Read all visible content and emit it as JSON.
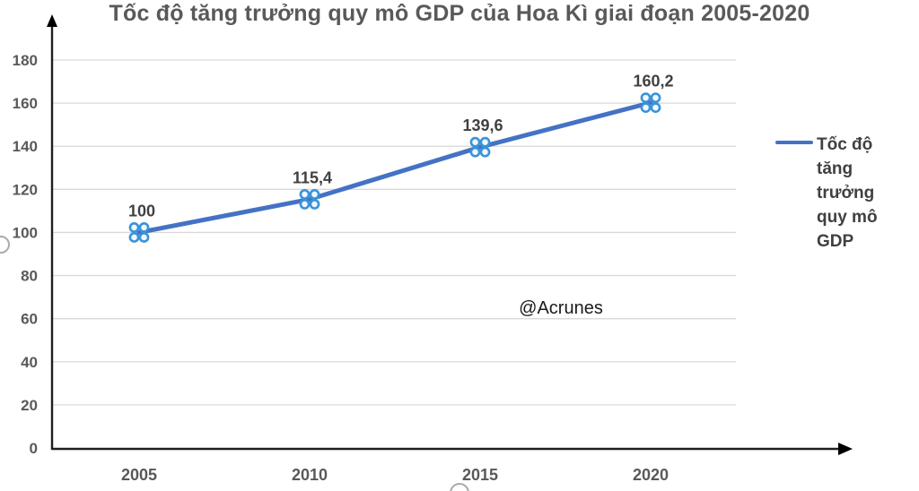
{
  "chart_data": {
    "type": "line",
    "title": "Tốc độ tăng trưởng quy mô GDP của Hoa Kì giai đoạn 2005-2020",
    "categories": [
      "2005",
      "2010",
      "2015",
      "2020"
    ],
    "series": [
      {
        "name": "Tốc độ tăng trưởng quy mô GDP",
        "values": [
          100,
          115.4,
          139.6,
          160.2
        ],
        "point_labels": [
          "100",
          "115,4",
          "139,6",
          "160,2"
        ],
        "line_color": "#4472C4",
        "marker_stroke": "#3A93D8",
        "marker_fill": "#F0F7FD"
      }
    ],
    "xlabel": "",
    "ylabel": "",
    "ylim": [
      0,
      180
    ],
    "ytick_step": 20,
    "grid": true,
    "legend_position": "right",
    "axis_arrows": true
  },
  "legend": {
    "label": "Tốc độ tăng trưởng quy mô GDP"
  },
  "watermark": {
    "text": "@Acrunes"
  },
  "colors": {
    "series_line": "#4472C4",
    "marker_stroke": "#3A93D8",
    "marker_fill": "#F0F7FD",
    "gridline": "#D9D9D9",
    "axis": "#1f1f1f",
    "tick_text": "#595959",
    "label_text": "#404040",
    "handle_stroke": "#ABABAB",
    "handle_fill": "#FFFFFF"
  }
}
